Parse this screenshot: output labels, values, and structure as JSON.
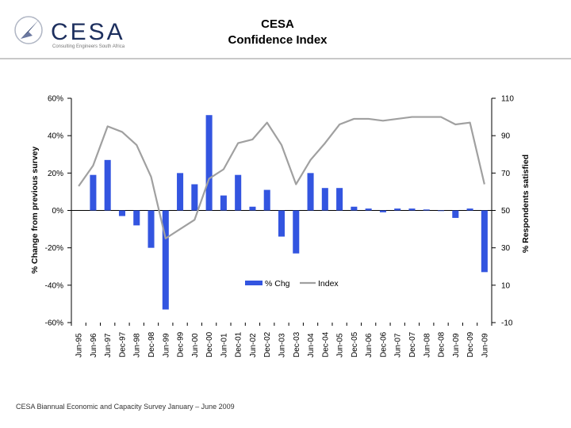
{
  "header": {
    "logo_text": "CESA",
    "logo_tagline": "Consulting Engineers South Africa",
    "title_line1": "CESA",
    "title_line2": "Confidence Index"
  },
  "footer": {
    "text": "CESA Biannual Economic and Capacity Survey January – June 2009"
  },
  "colors": {
    "bar": "#3355e0",
    "line": "#a0a0a0",
    "axis": "#000000"
  },
  "chart_data": {
    "type": "bar",
    "categories": [
      "Jun-95",
      "Jun-96",
      "Jun-97",
      "Dec-97",
      "Jun-98",
      "Dec-98",
      "Jun-99",
      "Dec-99",
      "Jun-00",
      "Dec-00",
      "Jun-01",
      "Dec-01",
      "Jun-02",
      "Dec-02",
      "Jun-03",
      "Dec-03",
      "Jun-04",
      "Dec-04",
      "Jun-05",
      "Dec-05",
      "Jun-06",
      "Dec-06",
      "Jun-07",
      "Dec-07",
      "Jun-08",
      "Dec-08",
      "Jun-09",
      "Dec-09",
      "Jun-09"
    ],
    "series": [
      {
        "name": "% Chg",
        "axis": "left",
        "kind": "bar",
        "values": [
          null,
          19,
          27,
          -3,
          -8,
          -20,
          -53,
          20,
          14,
          51,
          8,
          19,
          2,
          11,
          -14,
          -23,
          20,
          12,
          12,
          2,
          1,
          -1,
          1,
          1,
          0.5,
          0,
          -4,
          1,
          -33
        ]
      },
      {
        "name": "Index",
        "axis": "right",
        "kind": "line",
        "values": [
          63,
          74,
          95,
          92,
          85,
          68,
          35,
          40,
          45,
          67,
          72,
          86,
          88,
          97,
          85,
          64,
          77,
          86,
          96,
          99,
          99,
          98,
          99,
          100,
          100,
          100,
          96,
          97,
          64
        ]
      }
    ],
    "y_left": {
      "label": "% Change from previous survey",
      "min": -60,
      "max": 60,
      "ticks": [
        60,
        40,
        20,
        0,
        -20,
        -40,
        -60
      ],
      "tick_labels": [
        "60%",
        "40%",
        "20%",
        "0%",
        "-20%",
        "-40%",
        "-60%"
      ]
    },
    "y_right": {
      "label": "% Respondents satisfied",
      "min": -10,
      "max": 110,
      "ticks": [
        110,
        90,
        70,
        50,
        30,
        10,
        -10
      ],
      "tick_labels": [
        "110",
        "90",
        "70",
        "50",
        "30",
        "10",
        "-10"
      ]
    },
    "legend": {
      "position": "bottom-center",
      "entries": [
        "% Chg",
        "Index"
      ]
    }
  }
}
